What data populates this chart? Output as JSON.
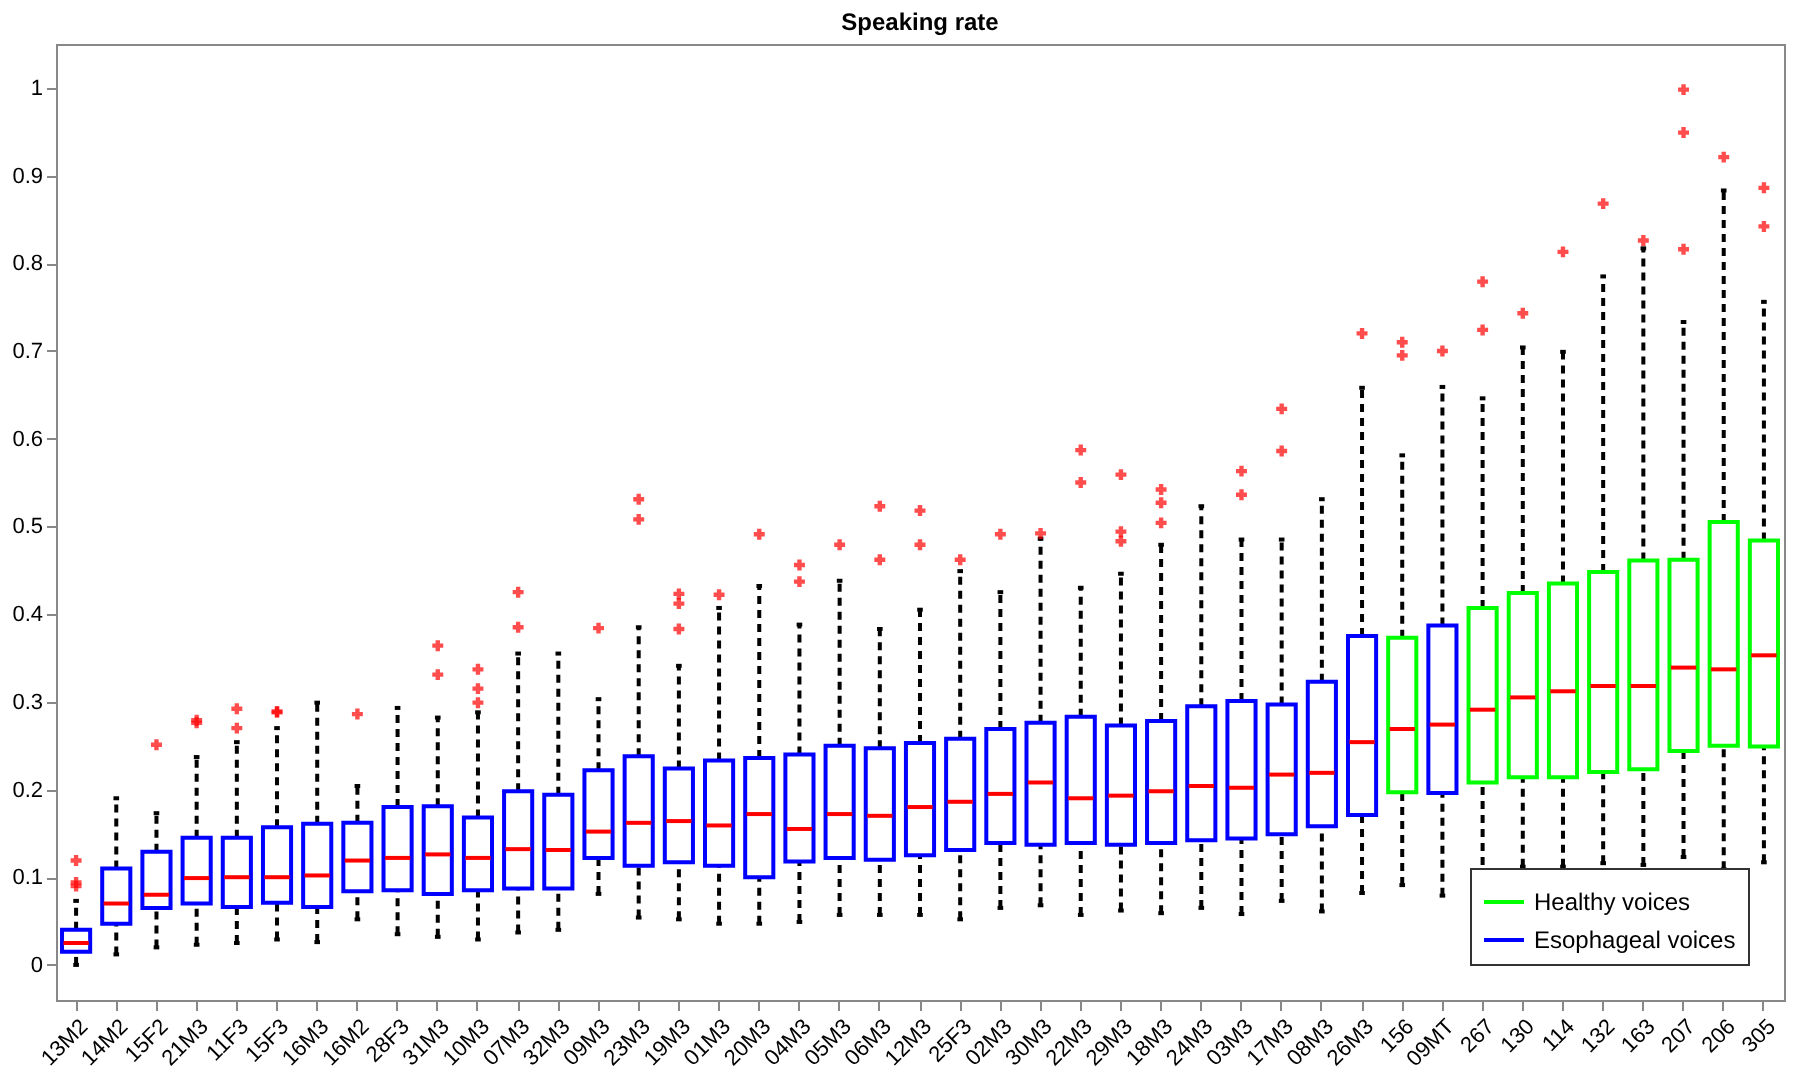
{
  "chart_data": {
    "type": "box",
    "title": "Speaking rate",
    "categories": [
      "13M2",
      "14M2",
      "15F2",
      "21M3",
      "11F3",
      "15F3",
      "16M3",
      "16M2",
      "28F3",
      "31M3",
      "10M3",
      "07M3",
      "32M3",
      "09M3",
      "23M3",
      "19M3",
      "01M3",
      "20M3",
      "04M3",
      "05M3",
      "06M3",
      "12M3",
      "25F3",
      "02M3",
      "30M3",
      "22M3",
      "29M3",
      "18M3",
      "24M3",
      "03M3",
      "17M3",
      "08M3",
      "26M3",
      "156",
      "09MT",
      "267",
      "130",
      "114",
      "132",
      "163",
      "207",
      "206",
      "305"
    ],
    "ylim": [
      -0.04,
      1.05
    ],
    "yticks": [
      {
        "value": 0,
        "label": "0"
      },
      0.1,
      0.2,
      0.3,
      0.4,
      0.5,
      0.6,
      0.7,
      0.8,
      0.9,
      {
        "value": 1,
        "label": "1"
      }
    ],
    "grid": false,
    "legend": "bottom right",
    "marker": "cross",
    "series": [
      {
        "name": "Healthy voices",
        "color": "#00ff00",
        "boxes": [
          null,
          null,
          null,
          null,
          null,
          null,
          null,
          null,
          null,
          null,
          null,
          null,
          null,
          null,
          null,
          null,
          null,
          null,
          null,
          null,
          null,
          null,
          null,
          null,
          null,
          null,
          null,
          null,
          null,
          null,
          null,
          null,
          null,
          {
            "low": 0.091,
            "q1": 0.197,
            "median": 0.269,
            "q3": 0.373,
            "high": 0.581,
            "outliers": [
              0.695,
              0.71
            ]
          },
          null,
          {
            "low": 0.098,
            "q1": 0.208,
            "median": 0.291,
            "q3": 0.407,
            "high": 0.646,
            "outliers": [
              0.724,
              0.779
            ]
          },
          {
            "low": 0.112,
            "q1": 0.214,
            "median": 0.305,
            "q3": 0.424,
            "high": 0.704,
            "outliers": [
              0.743
            ]
          },
          {
            "low": 0.112,
            "q1": 0.214,
            "median": 0.312,
            "q3": 0.435,
            "high": 0.699,
            "outliers": [
              0.813
            ]
          },
          {
            "low": 0.116,
            "q1": 0.22,
            "median": 0.318,
            "q3": 0.448,
            "high": 0.785,
            "outliers": [
              0.868
            ]
          },
          {
            "low": 0.114,
            "q1": 0.223,
            "median": 0.318,
            "q3": 0.461,
            "high": 0.817,
            "outliers": [
              0.826
            ]
          },
          {
            "low": 0.123,
            "q1": 0.244,
            "median": 0.339,
            "q3": 0.462,
            "high": 0.733,
            "outliers": [
              0.816,
              0.949,
              0.998
            ]
          },
          {
            "low": 0.109,
            "q1": 0.25,
            "median": 0.337,
            "q3": 0.505,
            "high": 0.883,
            "outliers": [
              0.921
            ]
          },
          {
            "low": 0.117,
            "q1": 0.249,
            "median": 0.353,
            "q3": 0.484,
            "high": 0.756,
            "outliers": [
              0.842,
              0.886
            ]
          }
        ]
      },
      {
        "name": "Esophageal voices",
        "color": "#0000ff",
        "boxes": [
          {
            "low": 0.0,
            "q1": 0.015,
            "median": 0.025,
            "q3": 0.04,
            "high": 0.073,
            "outliers": [
              0.09,
              0.094,
              0.119
            ]
          },
          {
            "low": 0.012,
            "q1": 0.047,
            "median": 0.07,
            "q3": 0.11,
            "high": 0.19
          },
          {
            "low": 0.02,
            "q1": 0.065,
            "median": 0.08,
            "q3": 0.129,
            "high": 0.173,
            "outliers": [
              0.251
            ]
          },
          {
            "low": 0.023,
            "q1": 0.07,
            "median": 0.099,
            "q3": 0.145,
            "high": 0.237,
            "outliers": [
              0.276,
              0.279
            ]
          },
          {
            "low": 0.025,
            "q1": 0.066,
            "median": 0.1,
            "q3": 0.145,
            "high": 0.254,
            "outliers": [
              0.27,
              0.292
            ]
          },
          {
            "low": 0.029,
            "q1": 0.071,
            "median": 0.1,
            "q3": 0.157,
            "high": 0.27,
            "outliers": [
              0.288,
              0.289
            ]
          },
          {
            "low": 0.026,
            "q1": 0.066,
            "median": 0.102,
            "q3": 0.161,
            "high": 0.299
          },
          {
            "low": 0.052,
            "q1": 0.084,
            "median": 0.119,
            "q3": 0.162,
            "high": 0.204,
            "outliers": [
              0.286
            ]
          },
          {
            "low": 0.035,
            "q1": 0.085,
            "median": 0.122,
            "q3": 0.18,
            "high": 0.293
          },
          {
            "low": 0.032,
            "q1": 0.081,
            "median": 0.126,
            "q3": 0.181,
            "high": 0.282,
            "outliers": [
              0.331,
              0.364
            ]
          },
          {
            "low": 0.029,
            "q1": 0.085,
            "median": 0.122,
            "q3": 0.168,
            "high": 0.288,
            "outliers": [
              0.299,
              0.315,
              0.337
            ]
          },
          {
            "low": 0.037,
            "q1": 0.087,
            "median": 0.132,
            "q3": 0.198,
            "high": 0.355,
            "outliers": [
              0.385,
              0.425
            ]
          },
          {
            "low": 0.04,
            "q1": 0.087,
            "median": 0.131,
            "q3": 0.194,
            "high": 0.355
          },
          {
            "low": 0.081,
            "q1": 0.122,
            "median": 0.152,
            "q3": 0.222,
            "high": 0.303,
            "outliers": [
              0.384
            ]
          },
          {
            "low": 0.054,
            "q1": 0.113,
            "median": 0.162,
            "q3": 0.238,
            "high": 0.385,
            "outliers": [
              0.508,
              0.531
            ]
          },
          {
            "low": 0.052,
            "q1": 0.117,
            "median": 0.164,
            "q3": 0.224,
            "high": 0.341,
            "outliers": [
              0.383,
              0.412,
              0.423
            ]
          },
          {
            "low": 0.047,
            "q1": 0.113,
            "median": 0.159,
            "q3": 0.233,
            "high": 0.407,
            "outliers": [
              0.422
            ]
          },
          {
            "low": 0.047,
            "q1": 0.1,
            "median": 0.172,
            "q3": 0.236,
            "high": 0.432,
            "outliers": [
              0.491
            ]
          },
          {
            "low": 0.049,
            "q1": 0.118,
            "median": 0.155,
            "q3": 0.24,
            "high": 0.388,
            "outliers": [
              0.437,
              0.456
            ]
          },
          {
            "low": 0.057,
            "q1": 0.122,
            "median": 0.172,
            "q3": 0.25,
            "high": 0.438,
            "outliers": [
              0.479
            ]
          },
          {
            "low": 0.057,
            "q1": 0.12,
            "median": 0.17,
            "q3": 0.247,
            "high": 0.383,
            "outliers": [
              0.462,
              0.523
            ]
          },
          {
            "low": 0.057,
            "q1": 0.125,
            "median": 0.18,
            "q3": 0.253,
            "high": 0.405,
            "outliers": [
              0.479,
              0.518
            ]
          },
          {
            "low": 0.052,
            "q1": 0.131,
            "median": 0.186,
            "q3": 0.258,
            "high": 0.449,
            "outliers": [
              0.462
            ]
          },
          {
            "low": 0.065,
            "q1": 0.139,
            "median": 0.195,
            "q3": 0.269,
            "high": 0.425,
            "outliers": [
              0.491
            ]
          },
          {
            "low": 0.068,
            "q1": 0.137,
            "median": 0.208,
            "q3": 0.276,
            "high": 0.486,
            "outliers": [
              0.492
            ]
          },
          {
            "low": 0.057,
            "q1": 0.139,
            "median": 0.19,
            "q3": 0.283,
            "high": 0.43,
            "outliers": [
              0.55,
              0.587
            ]
          },
          {
            "low": 0.062,
            "q1": 0.137,
            "median": 0.193,
            "q3": 0.273,
            "high": 0.446,
            "outliers": [
              0.483,
              0.494,
              0.559
            ]
          },
          {
            "low": 0.059,
            "q1": 0.139,
            "median": 0.198,
            "q3": 0.278,
            "high": 0.479,
            "outliers": [
              0.504,
              0.527,
              0.542
            ]
          },
          {
            "low": 0.065,
            "q1": 0.142,
            "median": 0.204,
            "q3": 0.295,
            "high": 0.523
          },
          {
            "low": 0.058,
            "q1": 0.144,
            "median": 0.202,
            "q3": 0.301,
            "high": 0.485,
            "outliers": [
              0.536,
              0.563
            ]
          },
          {
            "low": 0.073,
            "q1": 0.149,
            "median": 0.217,
            "q3": 0.297,
            "high": 0.485,
            "outliers": [
              0.586,
              0.634
            ]
          },
          {
            "low": 0.061,
            "q1": 0.158,
            "median": 0.219,
            "q3": 0.323,
            "high": 0.531
          },
          {
            "low": 0.082,
            "q1": 0.171,
            "median": 0.254,
            "q3": 0.375,
            "high": 0.658,
            "outliers": [
              0.72
            ]
          },
          null,
          {
            "low": 0.079,
            "q1": 0.196,
            "median": 0.274,
            "q3": 0.387,
            "high": 0.659,
            "outliers": [
              0.7
            ]
          },
          null,
          null,
          null,
          null,
          null,
          null,
          null,
          null
        ]
      }
    ]
  }
}
